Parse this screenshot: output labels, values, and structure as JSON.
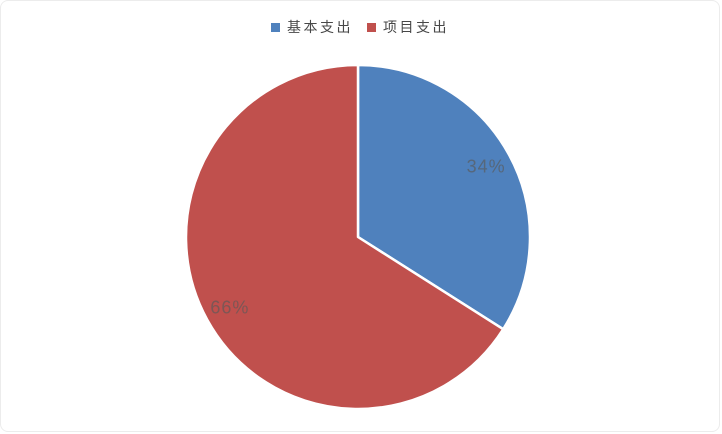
{
  "card": {
    "background_color": "#ffffff",
    "border_color": "#ececec"
  },
  "chart_data": {
    "type": "pie",
    "title": "",
    "categories": [
      "基本支出",
      "项目支出"
    ],
    "values": [
      34,
      66
    ],
    "series": [
      {
        "name": "基本支出",
        "value": 34,
        "percent_label": "34%",
        "color": "#4F81BD"
      },
      {
        "name": "项目支出",
        "value": 66,
        "percent_label": "66%",
        "color": "#C0504D"
      }
    ],
    "legend": {
      "position": "top-center",
      "entries": [
        "基本支出",
        "项目支出"
      ]
    },
    "start_angle_deg": 0,
    "direction": "clockwise",
    "slice_divider_color": "#ffffff",
    "percent_label_color": "#595959",
    "legend_text_color": "#474747",
    "grid": false
  }
}
